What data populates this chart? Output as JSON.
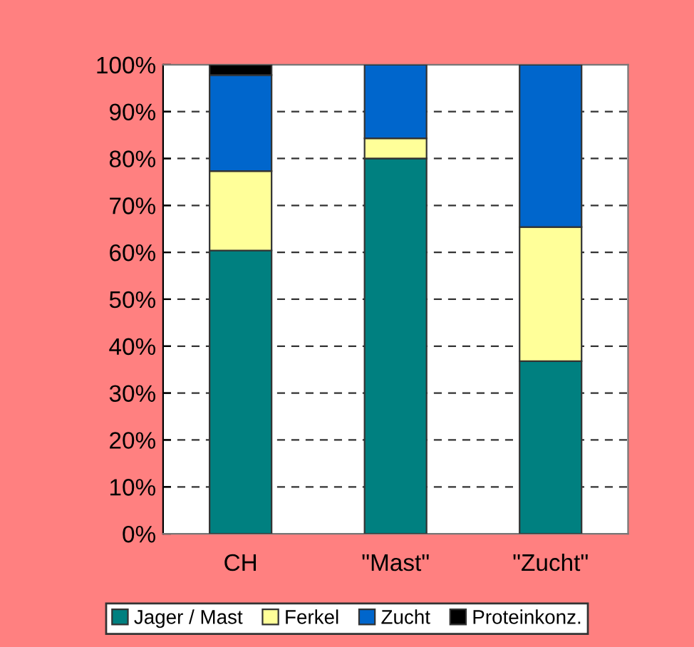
{
  "chart_data": {
    "type": "bar",
    "stacked": true,
    "categories": [
      "CH",
      "\"Mast\"",
      "\"Zucht\""
    ],
    "series": [
      {
        "name": "Jager / Mast",
        "color": "#008080",
        "values": [
          60.4,
          80.0,
          36.8
        ]
      },
      {
        "name": "Ferkel",
        "color": "#ffff99",
        "values": [
          16.9,
          4.3,
          28.6
        ]
      },
      {
        "name": "Zucht",
        "color": "#0066cc",
        "values": [
          20.5,
          15.7,
          34.6
        ]
      },
      {
        "name": "Proteinkonz.",
        "color": "#000000",
        "values": [
          2.2,
          null,
          null
        ]
      }
    ],
    "ylim": [
      0,
      100
    ],
    "yticks": [
      {
        "value": 0,
        "label": "0%"
      },
      {
        "value": 10,
        "label": "10%"
      },
      {
        "value": 20,
        "label": "20%"
      },
      {
        "value": 30,
        "label": "30%"
      },
      {
        "value": 40,
        "label": "40%"
      },
      {
        "value": 50,
        "label": "50%"
      },
      {
        "value": 60,
        "label": "60%"
      },
      {
        "value": 70,
        "label": "70%"
      },
      {
        "value": 80,
        "label": "80%"
      },
      {
        "value": 90,
        "label": "90%"
      },
      {
        "value": 100,
        "label": "100%"
      }
    ],
    "grid": "y",
    "legend": "bottom"
  }
}
